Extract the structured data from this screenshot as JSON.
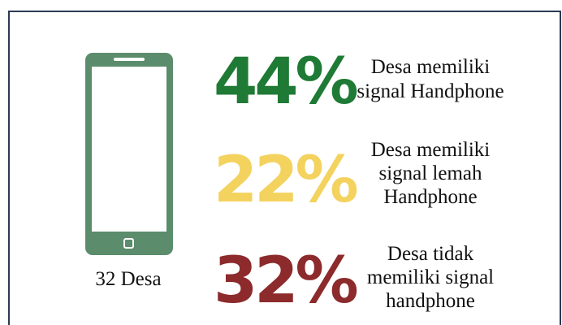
{
  "phone": {
    "label": "32 Desa"
  },
  "items": [
    {
      "percent": "44%",
      "color": "#1e7a34",
      "lines": [
        "Desa memiliki",
        "signal Handphone"
      ]
    },
    {
      "percent": "22%",
      "color": "#f3d25e",
      "lines": [
        "Desa memiliki",
        "signal lemah",
        "Handphone"
      ]
    },
    {
      "percent": "32%",
      "color": "#8c2a2c",
      "lines": [
        "Desa tidak",
        "memiliki signal",
        "handphone"
      ]
    }
  ]
}
